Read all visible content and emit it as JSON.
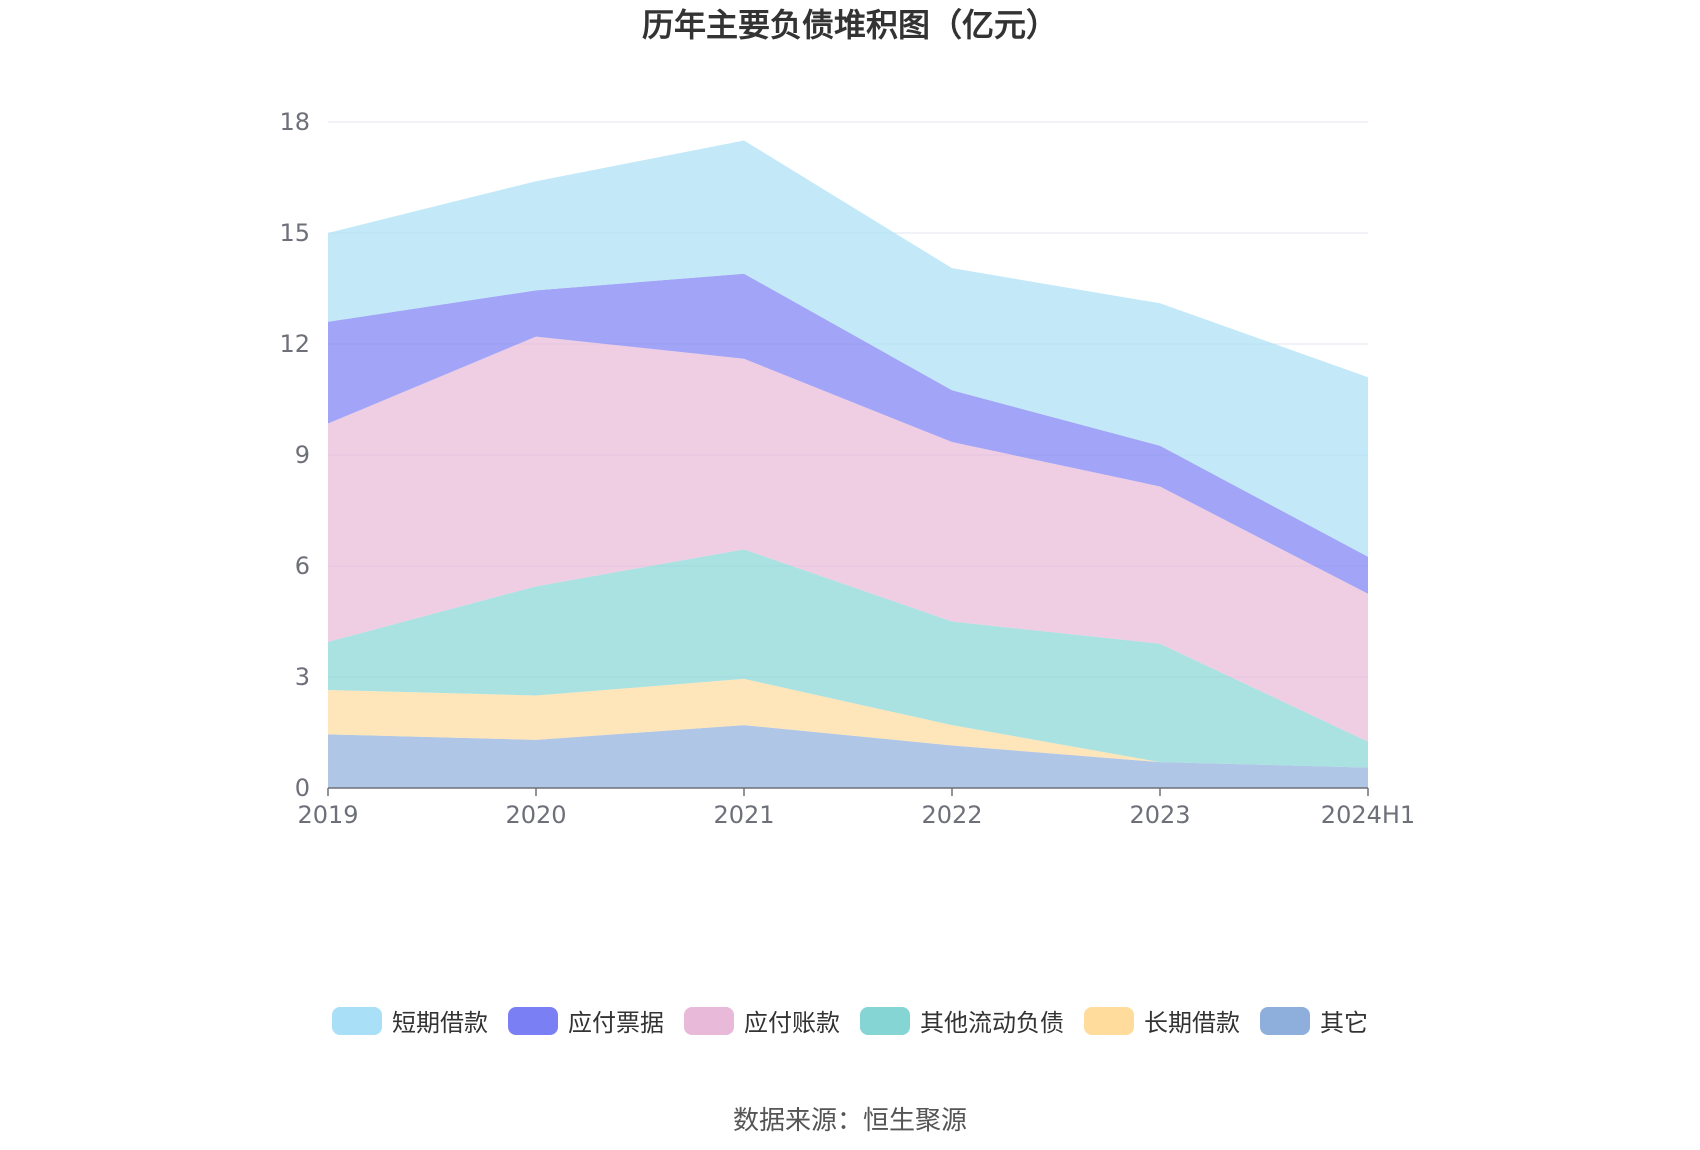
{
  "title": "历年主要负债堆积图（亿元）",
  "source": "数据来源：恒生聚源",
  "chart_data": {
    "type": "area",
    "stacked": true,
    "categories": [
      "2019",
      "2020",
      "2021",
      "2022",
      "2023",
      "2024H1"
    ],
    "ylim": [
      0,
      18
    ],
    "yticks": [
      0,
      3,
      6,
      9,
      12,
      15,
      18
    ],
    "grid": true,
    "legend_position": "bottom",
    "series": [
      {
        "name": "其它",
        "color": "#8eaedc",
        "values": [
          1.45,
          1.3,
          1.7,
          1.15,
          0.7,
          0.55
        ]
      },
      {
        "name": "长期借款",
        "color": "#ffdb9c",
        "values": [
          1.2,
          1.2,
          1.25,
          0.55,
          0.0,
          0.0
        ]
      },
      {
        "name": "其他流动负债",
        "color": "#86d5d5",
        "values": [
          1.3,
          2.95,
          3.5,
          2.8,
          3.2,
          0.7
        ]
      },
      {
        "name": "应付账款",
        "color": "#e8b9d9",
        "values": [
          5.9,
          6.75,
          5.15,
          4.85,
          4.25,
          4.0
        ]
      },
      {
        "name": "应付票据",
        "color": "#7b7ff4",
        "values": [
          2.75,
          1.25,
          2.3,
          1.4,
          1.1,
          1.0
        ]
      },
      {
        "name": "短期借款",
        "color": "#a9dff7",
        "values": [
          2.4,
          2.95,
          3.6,
          3.3,
          3.85,
          4.85
        ]
      }
    ]
  },
  "legend_order": [
    "短期借款",
    "应付票据",
    "应付账款",
    "其他流动负债",
    "长期借款",
    "其它"
  ]
}
